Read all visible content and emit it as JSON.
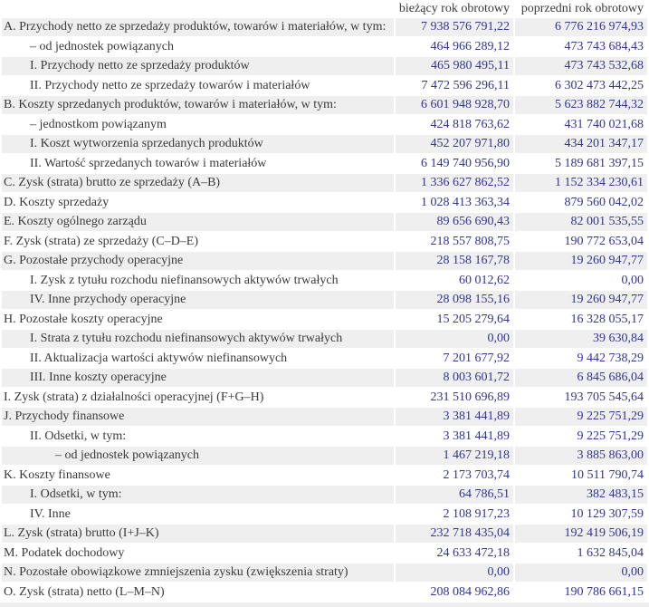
{
  "table": {
    "columns": [
      "bieżący rok obrotowy",
      "poprzedni rok obrotowy"
    ],
    "rows": [
      {
        "label": "A. Przychody netto ze sprzedaży produktów, towarów i materiałów, w tym:",
        "indent": 1,
        "current": "7 938 576 791,22",
        "previous": "6 776 216 974,93"
      },
      {
        "label": "– od jednostek powiązanych",
        "indent": 2,
        "current": "464 966 289,12",
        "previous": "473 743 684,43"
      },
      {
        "label": "I. Przychody netto ze sprzedaży produktów",
        "indent": 2,
        "current": "465 980 495,11",
        "previous": "473 743 532,68"
      },
      {
        "label": "II. Przychody netto ze sprzedaży towarów i materiałów",
        "indent": 2,
        "current": "7 472 596 296,11",
        "previous": "6 302 473 442,25"
      },
      {
        "label": "B. Koszty sprzedanych produktów, towarów i materiałów, w tym:",
        "indent": 1,
        "current": "6 601 948 928,70",
        "previous": "5 623 882 744,32"
      },
      {
        "label": "– jednostkom powiązanym",
        "indent": 2,
        "current": "424 818 763,62",
        "previous": "431 740 021,68"
      },
      {
        "label": "I. Koszt wytworzenia sprzedanych produktów",
        "indent": 2,
        "current": "452 207 971,80",
        "previous": "434 201 347,17"
      },
      {
        "label": "II. Wartość sprzedanych towarów i materiałów",
        "indent": 2,
        "current": "6 149 740 956,90",
        "previous": "5 189 681 397,15"
      },
      {
        "label": "C. Zysk (strata) brutto ze sprzedaży (A–B)",
        "indent": 1,
        "current": "1 336 627 862,52",
        "previous": "1 152 334 230,61"
      },
      {
        "label": "D. Koszty sprzedaży",
        "indent": 1,
        "current": "1 028 413 363,34",
        "previous": "879 560 042,02"
      },
      {
        "label": "E. Koszty ogólnego zarządu",
        "indent": 1,
        "current": "89 656 690,43",
        "previous": "82 001 535,55"
      },
      {
        "label": "F. Zysk (strata) ze sprzedaży (C–D–E)",
        "indent": 1,
        "current": "218 557 808,75",
        "previous": "190 772 653,04"
      },
      {
        "label": "G. Pozostałe przychody operacyjne",
        "indent": 1,
        "current": "28 158 167,78",
        "previous": "19 260 947,77"
      },
      {
        "label": "I. Zysk z tytułu rozchodu niefinansowych aktywów trwałych",
        "indent": 2,
        "current": "60 012,62",
        "previous": "0,00"
      },
      {
        "label": "IV. Inne przychody operacyjne",
        "indent": 2,
        "current": "28 098 155,16",
        "previous": "19 260 947,77"
      },
      {
        "label": "H. Pozostałe koszty operacyjne",
        "indent": 1,
        "current": "15 205 279,64",
        "previous": "16 328 055,17"
      },
      {
        "label": "I. Strata z tytułu rozchodu niefinansowych aktywów trwałych",
        "indent": 2,
        "current": "0,00",
        "previous": "39 630,84"
      },
      {
        "label": "II. Aktualizacja wartości aktywów niefinansowych",
        "indent": 2,
        "current": "7 201 677,92",
        "previous": "9 442 738,29"
      },
      {
        "label": "III. Inne koszty operacyjne",
        "indent": 2,
        "current": "8 003 601,72",
        "previous": "6 845 686,04"
      },
      {
        "label": "I. Zysk (strata) z działalności operacyjnej (F+G–H)",
        "indent": 1,
        "current": "231 510 696,89",
        "previous": "193 705 545,64"
      },
      {
        "label": "J. Przychody finansowe",
        "indent": 1,
        "current": "3 381 441,89",
        "previous": "9 225 751,29"
      },
      {
        "label": "II. Odsetki, w tym:",
        "indent": 2,
        "current": "3 381 441,89",
        "previous": "9 225 751,29"
      },
      {
        "label": "– od jednostek powiązanych",
        "indent": 3,
        "current": "1 467 219,18",
        "previous": "3 885 863,00"
      },
      {
        "label": "K. Koszty finansowe",
        "indent": 1,
        "current": "2 173 703,74",
        "previous": "10 511 790,74"
      },
      {
        "label": "I. Odsetki, w tym:",
        "indent": 2,
        "current": "64 786,51",
        "previous": "382 483,15"
      },
      {
        "label": "IV. Inne",
        "indent": 2,
        "current": "2 108 917,23",
        "previous": "10 129 307,59"
      },
      {
        "label": "L. Zysk (strata) brutto (I+J–K)",
        "indent": 1,
        "current": "232 718 435,04",
        "previous": "192 419 506,19"
      },
      {
        "label": "M. Podatek dochodowy",
        "indent": 1,
        "current": "24 633 472,18",
        "previous": "1 632 845,04"
      },
      {
        "label": "N. Pozostałe obowiązkowe zmniejszenia zysku (zwiększenia straty)",
        "indent": 1,
        "current": "0,00",
        "previous": "0,00"
      },
      {
        "label": "O. Zysk (strata) netto (L–M–N)",
        "indent": 1,
        "current": "208 084 962,86",
        "previous": "190 786 661,15"
      }
    ]
  },
  "colors": {
    "stripe": "#efefef",
    "number_text": "#333399",
    "label_text": "#3a3a3a"
  }
}
